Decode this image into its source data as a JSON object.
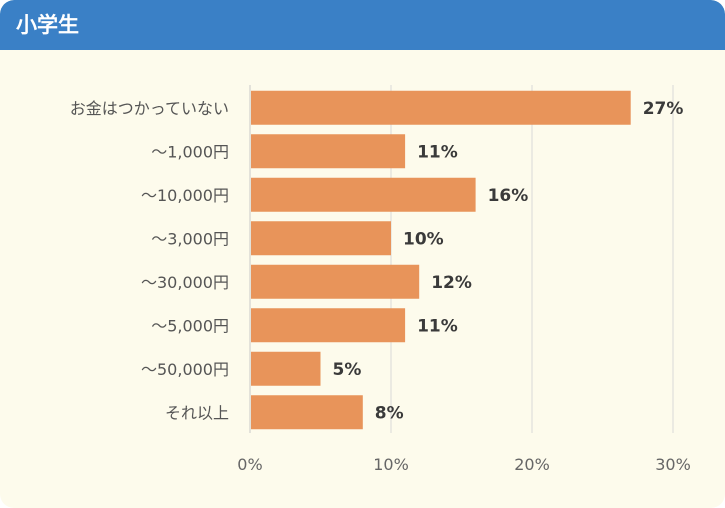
{
  "header": {
    "title": "小学生"
  },
  "colors": {
    "header": "#3a80c6",
    "background": "#fdfbec",
    "bar": "#e8945a",
    "grid": "#d9d9d9"
  },
  "chart_data": {
    "type": "bar",
    "orientation": "horizontal",
    "title": "小学生",
    "categories": [
      "お金はつかっていない",
      "～1,000円",
      "～10,000円",
      "～3,000円",
      "～30,000円",
      "～5,000円",
      "～50,000円",
      "それ以上"
    ],
    "values": [
      27,
      11,
      16,
      10,
      12,
      11,
      5,
      8
    ],
    "value_labels": [
      "27%",
      "11%",
      "16%",
      "10%",
      "12%",
      "11%",
      "5%",
      "8%"
    ],
    "xlim": [
      0,
      30
    ],
    "ticks": [
      0,
      10,
      20,
      30
    ],
    "tick_labels": [
      "0%",
      "10%",
      "20%",
      "30%"
    ],
    "grid": true,
    "legend": "none"
  }
}
